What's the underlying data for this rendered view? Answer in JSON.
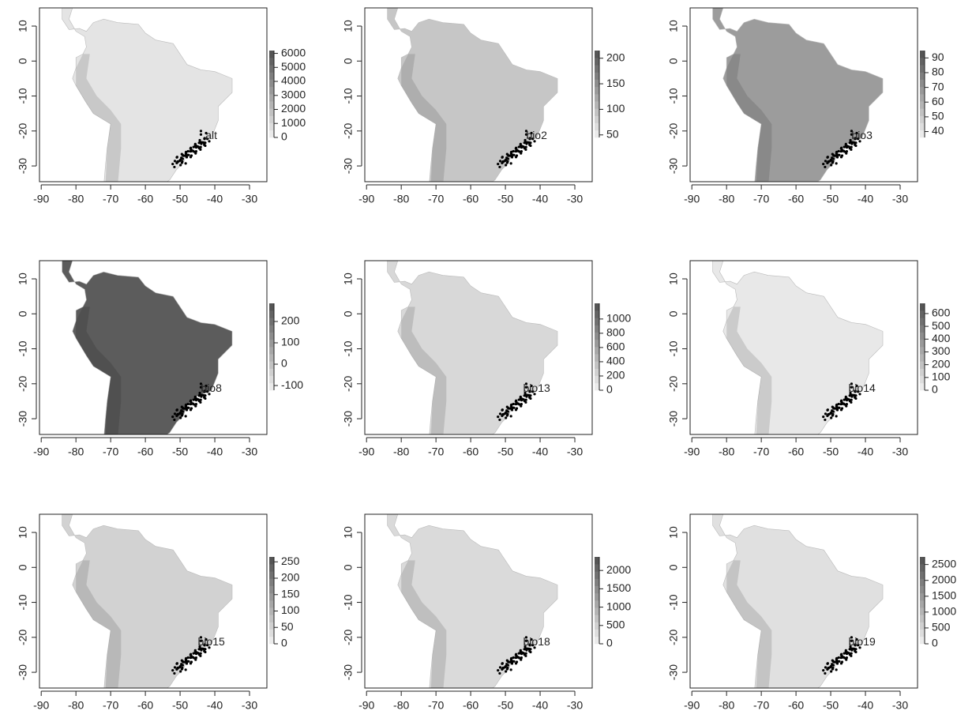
{
  "axes": {
    "x_ticks": [
      -90,
      -80,
      -70,
      -60,
      -50,
      -40,
      -30
    ],
    "y_ticks": [
      10,
      0,
      -10,
      -20,
      -30
    ],
    "xlim": [
      -90.5,
      -25
    ],
    "ylim": [
      -34.5,
      15.2
    ]
  },
  "panels": [
    {
      "label": "alt",
      "color": "#e4e4e4",
      "legend_range": [
        0,
        6200
      ],
      "legend_ticks": [
        6000,
        5000,
        4000,
        3000,
        2000,
        1000,
        0
      ]
    },
    {
      "label": "bio2",
      "color": "#c6c6c6",
      "legend_range": [
        45,
        215
      ],
      "legend_ticks": [
        200,
        150,
        100,
        50
      ]
    },
    {
      "label": "bio3",
      "color": "#9c9c9c",
      "legend_range": [
        36,
        95
      ],
      "legend_ticks": [
        90,
        80,
        70,
        60,
        50,
        40
      ]
    },
    {
      "label": "bio8",
      "color": "#5c5c5c",
      "legend_range": [
        -122,
        285
      ],
      "legend_ticks": [
        200,
        100,
        0,
        -100
      ]
    },
    {
      "label": "bio13",
      "color": "#d8d8d8",
      "legend_range": [
        0,
        1220
      ],
      "legend_ticks": [
        1000,
        800,
        600,
        400,
        200,
        0
      ]
    },
    {
      "label": "bio14",
      "color": "#e8e8e8",
      "legend_range": [
        0,
        680
      ],
      "legend_ticks": [
        600,
        500,
        400,
        300,
        200,
        100,
        0
      ]
    },
    {
      "label": "bio15",
      "color": "#d2d2d2",
      "legend_range": [
        0,
        265
      ],
      "legend_ticks": [
        250,
        200,
        150,
        100,
        50,
        0
      ]
    },
    {
      "label": "bio18",
      "color": "#dadada",
      "legend_range": [
        0,
        2370
      ],
      "legend_ticks": [
        2000,
        1500,
        1000,
        500,
        0
      ]
    },
    {
      "label": "bio19",
      "color": "#e0e0e0",
      "legend_range": [
        0,
        2740
      ],
      "legend_ticks": [
        2500,
        2000,
        1500,
        1000,
        500,
        0
      ]
    }
  ]
}
